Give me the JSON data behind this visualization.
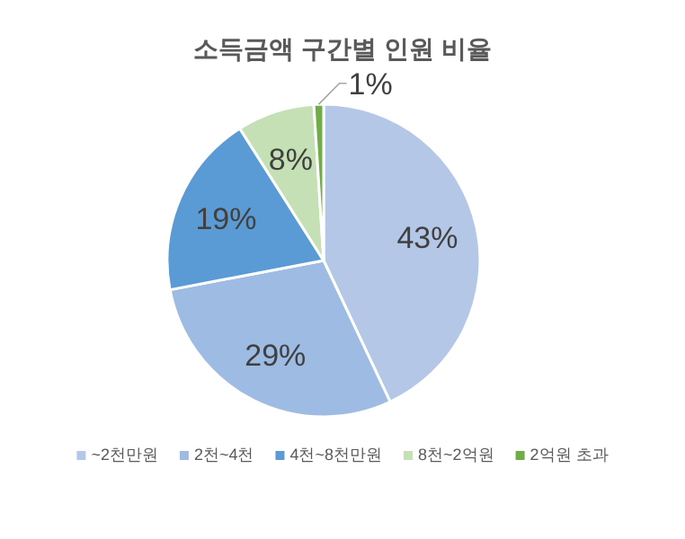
{
  "chart_data": {
    "type": "pie",
    "title": "소득금액 구간별 인원 비율",
    "categories": [
      "~2천만원",
      "2천~4천",
      "4천~8천만원",
      "8천~2억원",
      "2억원 초과"
    ],
    "values": [
      43,
      29,
      19,
      8,
      1
    ],
    "colors": [
      "#b4c7e7",
      "#9dbbe3",
      "#5b9bd5",
      "#c5e0b4",
      "#70ad47"
    ],
    "value_labels": [
      "43%",
      "29%",
      "19%",
      "8%",
      "1%"
    ],
    "legend": "bottom"
  }
}
